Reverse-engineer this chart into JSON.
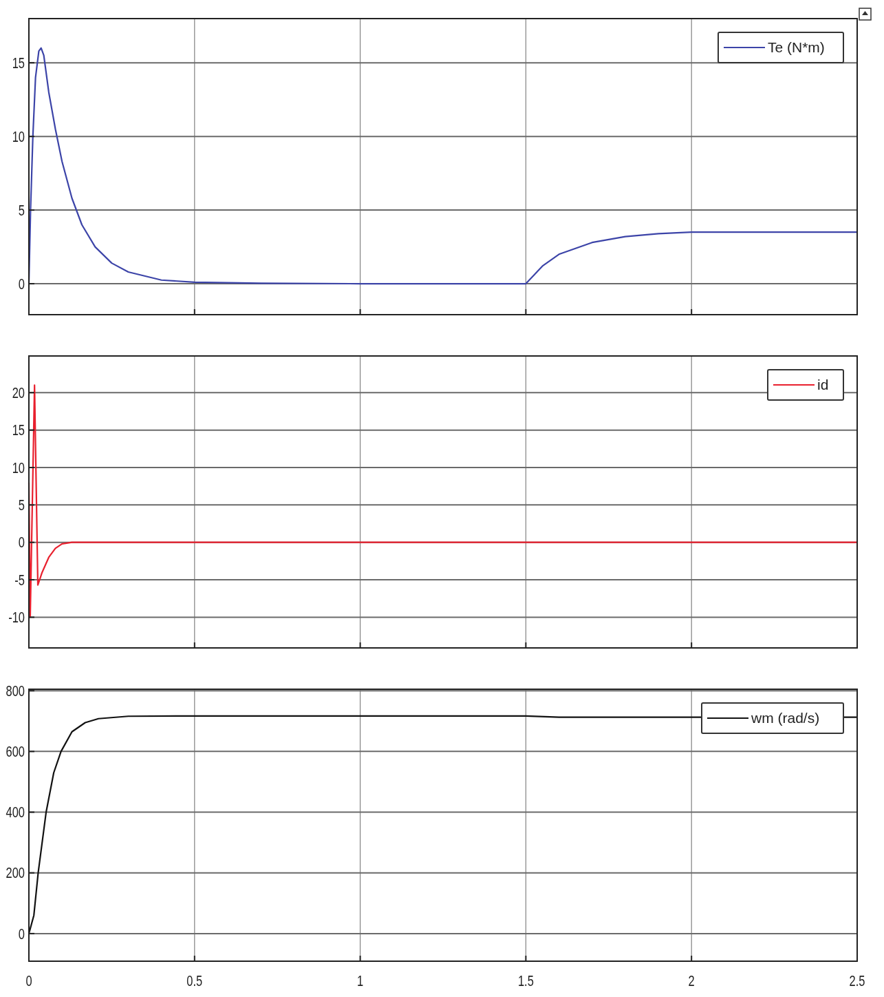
{
  "chart_data": [
    {
      "type": "line",
      "x": [
        0,
        0.005,
        0.012,
        0.02,
        0.03,
        0.037,
        0.045,
        0.06,
        0.08,
        0.1,
        0.13,
        0.16,
        0.2,
        0.25,
        0.3,
        0.4,
        0.5,
        0.7,
        1,
        1.5,
        1.55,
        1.6,
        1.7,
        1.8,
        1.9,
        2,
        2.5
      ],
      "series": [
        {
          "name": "Te (N*m)",
          "color": "#3c44a8",
          "values": [
            0,
            5,
            10,
            14,
            15.8,
            16,
            15.5,
            13,
            10.5,
            8.3,
            5.8,
            4,
            2.5,
            1.4,
            0.8,
            0.25,
            0.1,
            0.03,
            0,
            0,
            1.2,
            2,
            2.8,
            3.2,
            3.4,
            3.5,
            3.5
          ]
        }
      ],
      "xlim": [
        0,
        2.5
      ],
      "xticks": [
        0,
        0.5,
        1,
        1.5,
        2,
        2.5
      ],
      "ylim": [
        -2.1,
        18
      ],
      "yticks": [
        0,
        5,
        10,
        15
      ],
      "grid": true,
      "legend": "top right",
      "tick_labels": "y"
    },
    {
      "type": "line",
      "x": [
        0,
        0.004,
        0.017,
        0.027,
        0.04,
        0.06,
        0.08,
        0.1,
        0.13,
        2.5
      ],
      "series": [
        {
          "name": "id",
          "color": "#e8202e",
          "values": [
            8,
            -10,
            21,
            -5.7,
            -4,
            -2,
            -0.8,
            -0.2,
            0,
            0
          ]
        }
      ],
      "xlim": [
        0,
        2.5
      ],
      "xticks": [
        0,
        0.5,
        1,
        1.5,
        2,
        2.5
      ],
      "ylim": [
        -14.1,
        24.9
      ],
      "yticks": [
        -10,
        -5,
        0,
        5,
        10,
        15,
        20
      ],
      "grid": true,
      "legend": "top right",
      "tick_labels": "y"
    },
    {
      "type": "line",
      "x": [
        0,
        0.015,
        0.028,
        0.04,
        0.052,
        0.075,
        0.097,
        0.13,
        0.17,
        0.21,
        0.3,
        0.5,
        1.5,
        1.6,
        2.5
      ],
      "series": [
        {
          "name": "wm (rad/s)",
          "color": "#111111",
          "values": [
            0,
            60,
            200,
            300,
            400,
            530,
            600,
            665,
            695,
            708,
            716,
            717,
            717,
            713,
            713
          ]
        }
      ],
      "xlim": [
        0,
        2.5
      ],
      "xticks": [
        0,
        0.5,
        1,
        1.5,
        2,
        2.5
      ],
      "ylim": [
        -91,
        805
      ],
      "yticks": [
        0,
        200,
        400,
        600,
        800
      ],
      "grid": true,
      "legend": "top right"
    }
  ]
}
